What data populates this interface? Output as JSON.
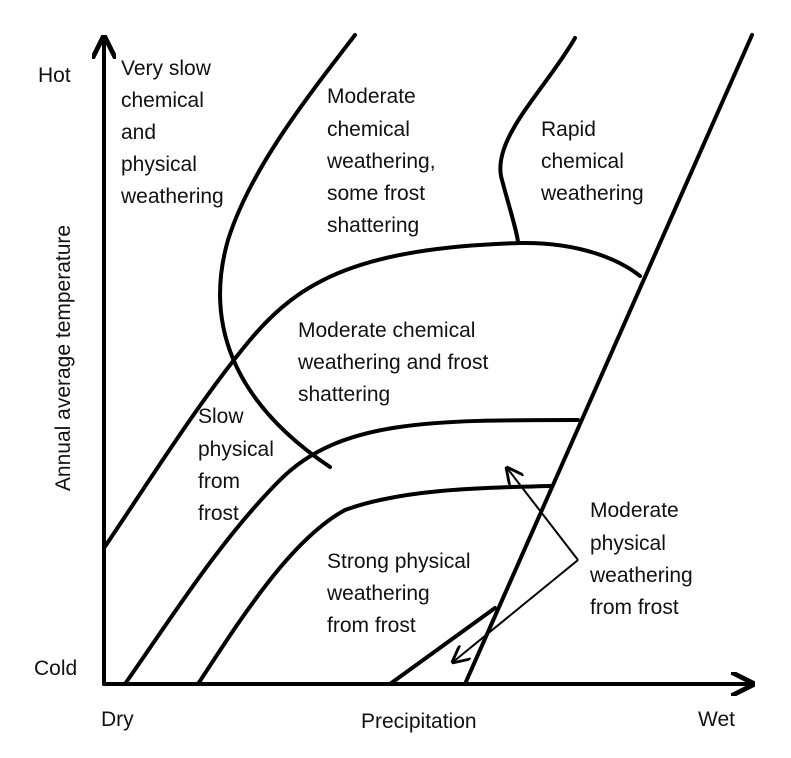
{
  "axes": {
    "x_label": "Precipitation",
    "x_min_label": "Dry",
    "x_max_label": "Wet",
    "y_label": "Annual average temperature",
    "y_max_label": "Hot",
    "y_min_label": "Cold"
  },
  "regions": {
    "very_slow": [
      "Very slow",
      "chemical",
      "and",
      "physical",
      "weathering"
    ],
    "moderate_chem_frost": [
      "Moderate",
      "chemical",
      "weathering,",
      "some frost",
      "shattering"
    ],
    "rapid": [
      "Rapid",
      "chemical",
      "weathering"
    ],
    "moderate_chem_shatter": [
      "Moderate chemical",
      "weathering and frost",
      "shattering"
    ],
    "slow_physical": [
      "Slow",
      "physical",
      "from",
      "frost"
    ],
    "strong_physical": [
      "Strong physical",
      "weathering",
      "from frost"
    ],
    "moderate_physical": [
      "Moderate",
      "physical",
      "weathering",
      "from frost"
    ]
  }
}
